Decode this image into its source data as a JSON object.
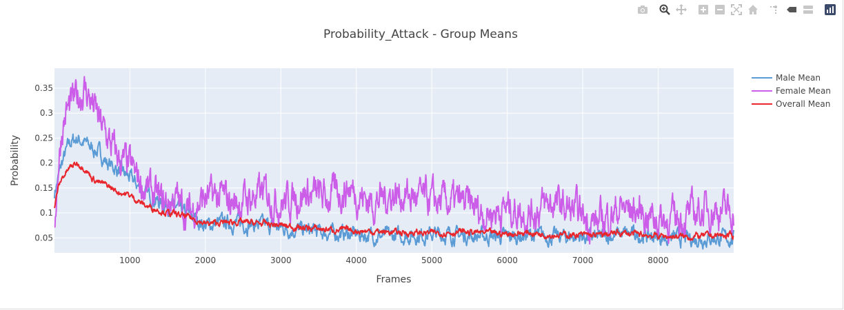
{
  "toolbar": {
    "buttons": [
      {
        "name": "camera-icon",
        "label": "Download plot as a png"
      },
      {
        "name": "zoom-icon",
        "label": "Zoom"
      },
      {
        "name": "pan-icon",
        "label": "Pan"
      },
      {
        "name": "zoom-in-icon",
        "label": "Zoom in"
      },
      {
        "name": "zoom-out-icon",
        "label": "Zoom out"
      },
      {
        "name": "autoscale-icon",
        "label": "Autoscale"
      },
      {
        "name": "home-icon",
        "label": "Reset axes"
      },
      {
        "name": "spikelines-icon",
        "label": "Toggle Spike Lines"
      },
      {
        "name": "hover-closest-icon",
        "label": "Show closest data on hover"
      },
      {
        "name": "hover-compare-icon",
        "label": "Compare data on hover"
      },
      {
        "name": "plotly-logo-icon",
        "label": "Produced with Plotly"
      }
    ]
  },
  "chart_data": {
    "type": "line",
    "title": "Probability_Attack - Group Means",
    "xlabel": "Frames",
    "ylabel": "Probability",
    "xlim": [
      0,
      9000
    ],
    "ylim": [
      0.02,
      0.39
    ],
    "xticks": [
      1000,
      2000,
      3000,
      4000,
      5000,
      6000,
      7000,
      8000
    ],
    "yticks": [
      0.05,
      0.1,
      0.15,
      0.2,
      0.25,
      0.3,
      0.35
    ],
    "grid": true,
    "legend_position": "right",
    "plot_bgcolor": "#e5ecf6",
    "series": [
      {
        "name": "Male Mean",
        "color": "#5b9bd5",
        "x": [
          0,
          50,
          100,
          150,
          200,
          300,
          400,
          500,
          600,
          700,
          800,
          900,
          1000,
          1100,
          1200,
          1300,
          1400,
          1500,
          1600,
          1700,
          1800,
          1900,
          2000,
          2200,
          2400,
          2600,
          2800,
          3000,
          3300,
          3600,
          3900,
          4200,
          4500,
          4800,
          5100,
          5400,
          5700,
          6000,
          6300,
          6600,
          6900,
          7200,
          7500,
          7800,
          8100,
          8400,
          8700,
          9000
        ],
        "y": [
          0.14,
          0.17,
          0.2,
          0.22,
          0.24,
          0.25,
          0.24,
          0.23,
          0.22,
          0.2,
          0.19,
          0.18,
          0.17,
          0.155,
          0.14,
          0.13,
          0.12,
          0.115,
          0.11,
          0.1,
          0.095,
          0.085,
          0.075,
          0.08,
          0.08,
          0.077,
          0.075,
          0.07,
          0.065,
          0.06,
          0.058,
          0.055,
          0.053,
          0.055,
          0.057,
          0.055,
          0.053,
          0.052,
          0.055,
          0.052,
          0.053,
          0.05,
          0.058,
          0.055,
          0.05,
          0.048,
          0.05,
          0.048
        ]
      },
      {
        "name": "Female Mean",
        "color": "#cc5de8",
        "x": [
          0,
          50,
          100,
          150,
          200,
          300,
          400,
          500,
          600,
          700,
          800,
          900,
          1000,
          1100,
          1200,
          1300,
          1400,
          1500,
          1600,
          1700,
          1800,
          1900,
          2000,
          2200,
          2400,
          2600,
          2800,
          3000,
          3300,
          3600,
          3900,
          4200,
          4500,
          4800,
          5100,
          5400,
          5700,
          6000,
          6300,
          6600,
          6900,
          7200,
          7500,
          7800,
          8100,
          8400,
          8700,
          9000
        ],
        "y": [
          0.08,
          0.2,
          0.27,
          0.3,
          0.31,
          0.33,
          0.35,
          0.32,
          0.28,
          0.25,
          0.22,
          0.2,
          0.19,
          0.17,
          0.15,
          0.14,
          0.12,
          0.12,
          0.13,
          0.11,
          0.1,
          0.12,
          0.13,
          0.13,
          0.12,
          0.13,
          0.14,
          0.12,
          0.14,
          0.13,
          0.15,
          0.12,
          0.14,
          0.13,
          0.12,
          0.12,
          0.1,
          0.11,
          0.1,
          0.12,
          0.1,
          0.08,
          0.11,
          0.1,
          0.085,
          0.095,
          0.11,
          0.1
        ]
      },
      {
        "name": "Overall Mean",
        "color": "#e8262c",
        "x": [
          0,
          50,
          100,
          150,
          200,
          300,
          400,
          500,
          600,
          700,
          800,
          900,
          1000,
          1100,
          1200,
          1300,
          1400,
          1500,
          1600,
          1700,
          1800,
          1900,
          2000,
          2200,
          2400,
          2600,
          2800,
          3000,
          3300,
          3600,
          3900,
          4200,
          4500,
          4800,
          5100,
          5400,
          5700,
          6000,
          6300,
          6600,
          6900,
          7200,
          7500,
          7800,
          8100,
          8400,
          8700,
          9000
        ],
        "y": [
          0.11,
          0.15,
          0.17,
          0.18,
          0.19,
          0.2,
          0.19,
          0.17,
          0.16,
          0.155,
          0.145,
          0.14,
          0.135,
          0.125,
          0.115,
          0.11,
          0.105,
          0.1,
          0.097,
          0.094,
          0.09,
          0.085,
          0.078,
          0.08,
          0.082,
          0.08,
          0.078,
          0.075,
          0.07,
          0.067,
          0.065,
          0.063,
          0.061,
          0.06,
          0.06,
          0.062,
          0.06,
          0.058,
          0.06,
          0.056,
          0.056,
          0.055,
          0.06,
          0.056,
          0.053,
          0.052,
          0.055,
          0.054
        ]
      }
    ]
  }
}
